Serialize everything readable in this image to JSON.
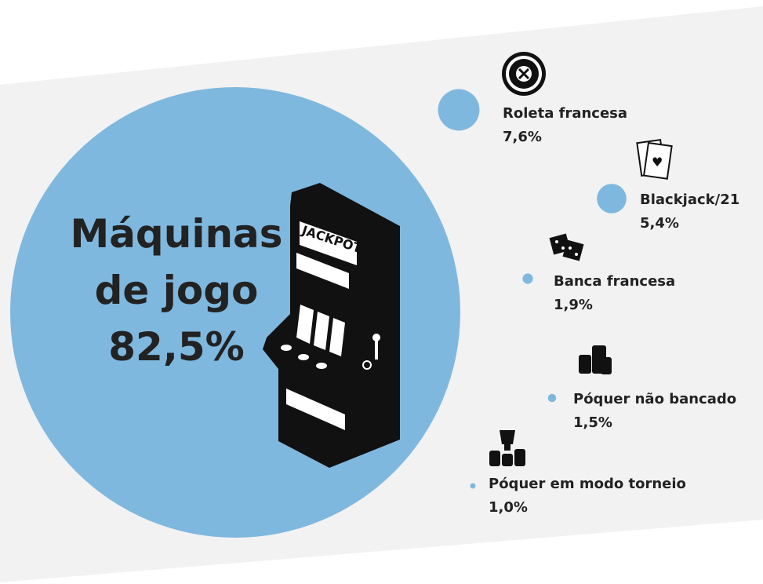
{
  "chart_data": {
    "type": "bubble",
    "categories": [
      "Máquinas de jogo",
      "Roleta francesa",
      "Blackjack/21",
      "Banca francesa",
      "Póquer não bancado",
      "Póquer em modo torneio"
    ],
    "values": [
      82.5,
      7.6,
      5.4,
      1.9,
      1.5,
      1.0
    ],
    "value_labels": [
      "82,5%",
      "7,6%",
      "5,4%",
      "1,9%",
      "1,5%",
      "1,0%"
    ],
    "color": "#7fb8df"
  }
}
